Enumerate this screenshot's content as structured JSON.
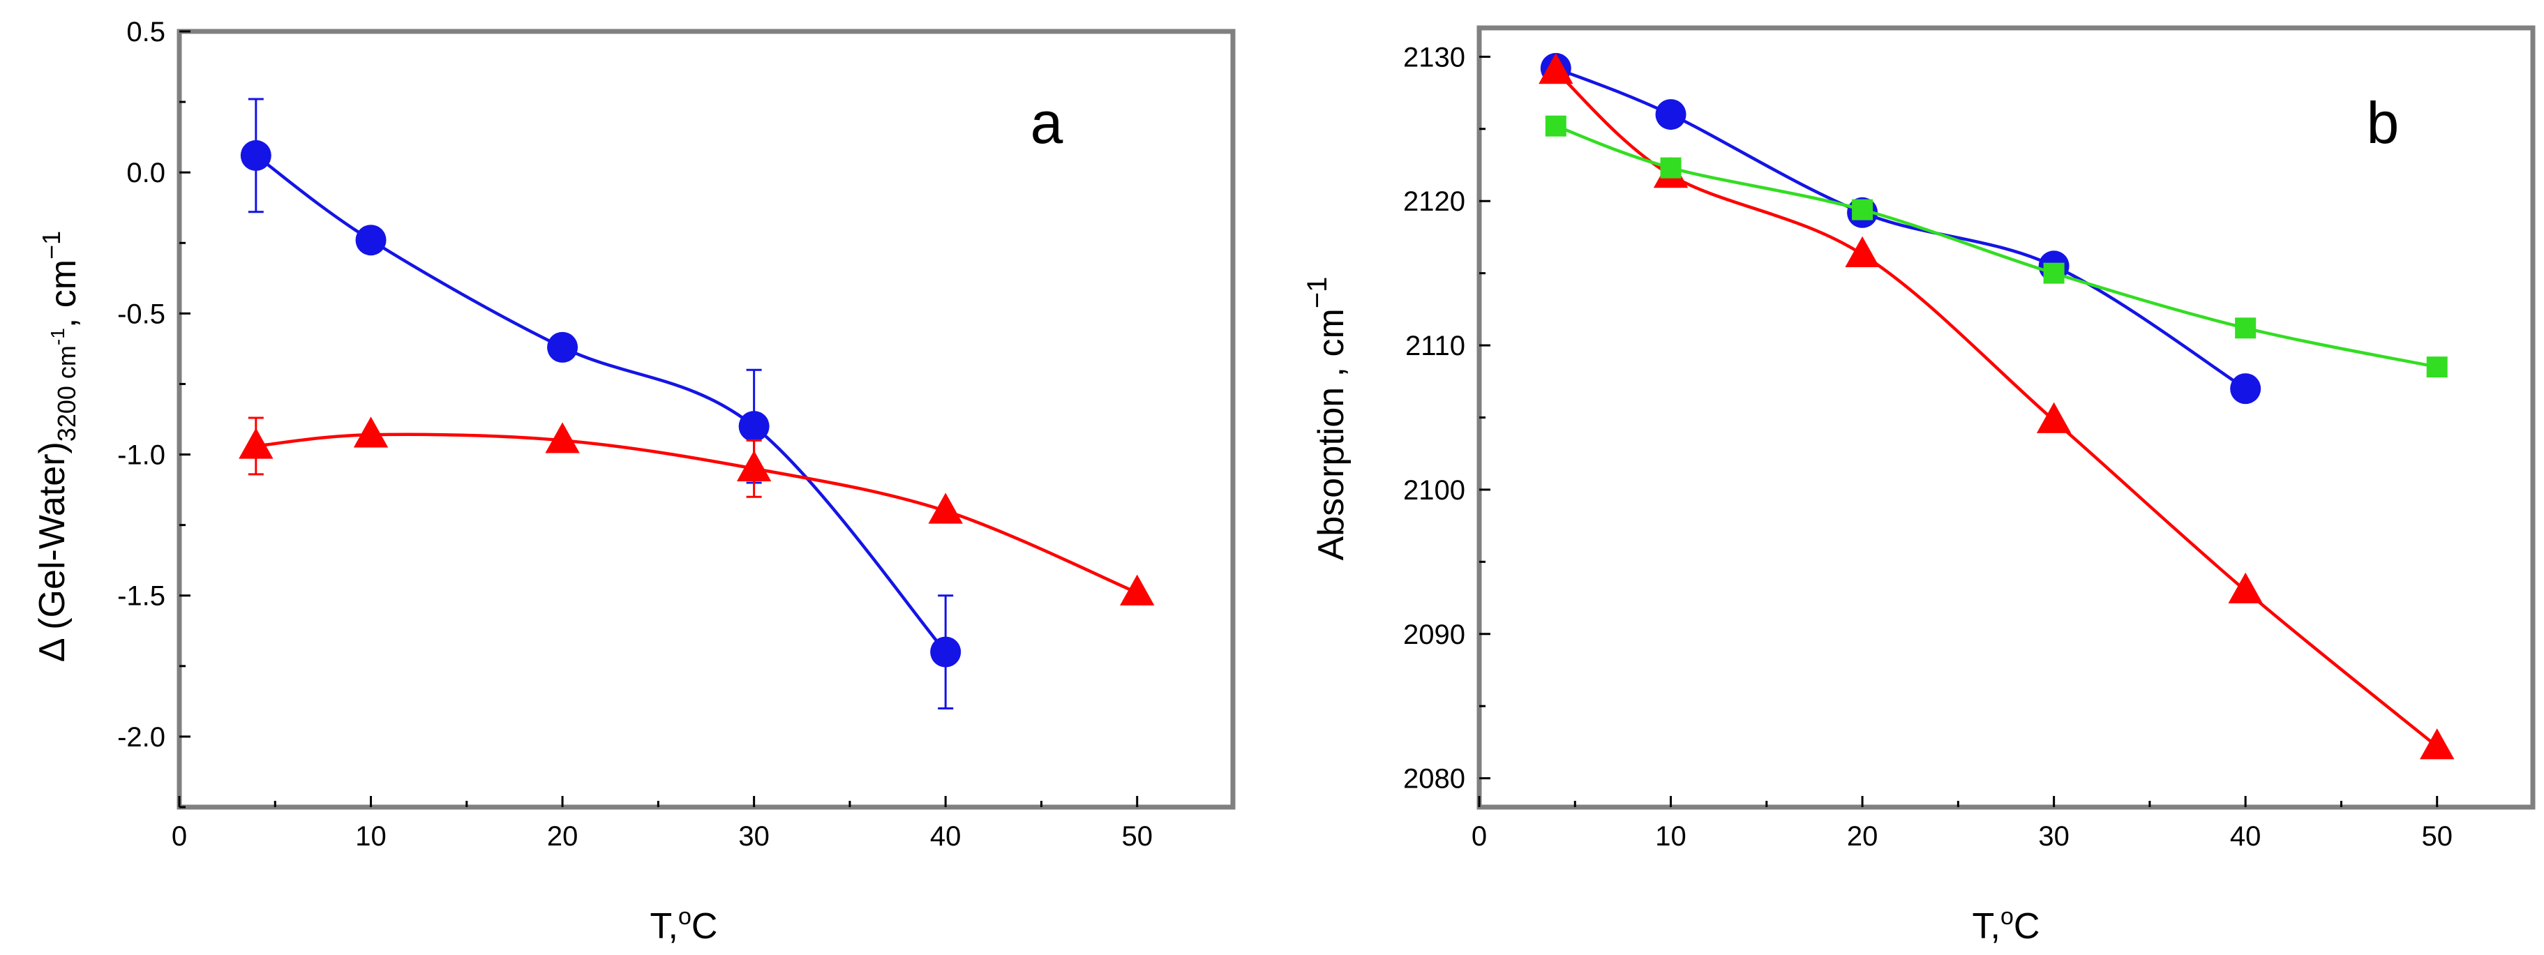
{
  "chart_data": [
    {
      "panel": "a",
      "type": "line",
      "xlabel_base": "T,",
      "xlabel_sup": "o",
      "xlabel_tail": "C",
      "ylabel_prefix": "Δ (Gel-Water)",
      "ylabel_sub": "3200 cm",
      "ylabel_sub_sup": "-1",
      "ylabel_unit": ", cm",
      "ylabel_unit_sup": "−1",
      "xlim": [
        0,
        55
      ],
      "ylim": [
        -2.25,
        0.5
      ],
      "xticks": [
        0,
        10,
        20,
        30,
        40,
        50
      ],
      "yticks": [
        0.5,
        0.0,
        -0.5,
        -1.0,
        -1.5,
        -2.0
      ],
      "ytick_labels": [
        "0.5",
        "0.0",
        "-0.5",
        "-1.0",
        "-1.5",
        "-2.0"
      ],
      "series": [
        {
          "name": "blue circles",
          "color": "#1414e6",
          "marker": "circle",
          "x": [
            4,
            10,
            20,
            30,
            40
          ],
          "y": [
            0.06,
            -0.24,
            -0.62,
            -0.9,
            -1.7
          ],
          "err": [
            0.2,
            0,
            0,
            0.2,
            0.2
          ]
        },
        {
          "name": "red triangles",
          "color": "#ff0000",
          "marker": "triangle",
          "x": [
            4,
            10,
            20,
            30,
            40,
            50
          ],
          "y": [
            -0.97,
            -0.93,
            -0.95,
            -1.05,
            -1.2,
            -1.49
          ],
          "err": [
            0.1,
            0,
            0,
            0.1,
            0,
            0
          ]
        }
      ]
    },
    {
      "panel": "b",
      "type": "line",
      "xlabel_base": "T,",
      "xlabel_sup": "o",
      "xlabel_tail": "C",
      "ylabel_prefix": "Absorption , cm",
      "ylabel_unit_sup": "−1",
      "xlim": [
        0,
        55
      ],
      "ylim": [
        2078,
        2132
      ],
      "xticks": [
        0,
        10,
        20,
        30,
        40,
        50
      ],
      "yticks": [
        2080,
        2090,
        2100,
        2110,
        2120,
        2130
      ],
      "ytick_labels": [
        "2080",
        "2090",
        "2100",
        "2110",
        "2120",
        "2130"
      ],
      "series": [
        {
          "name": "blue circles",
          "color": "#1414e6",
          "marker": "circle",
          "x": [
            4,
            10,
            20,
            30,
            40
          ],
          "y": [
            2129.2,
            2126.0,
            2119.2,
            2115.5,
            2107.0
          ]
        },
        {
          "name": "red triangles",
          "color": "#ff0000",
          "marker": "triangle",
          "x": [
            4,
            10,
            20,
            30,
            40,
            50
          ],
          "y": [
            2129.0,
            2121.8,
            2116.3,
            2104.8,
            2093.0,
            2082.2
          ]
        },
        {
          "name": "green squares",
          "color": "#33dd22",
          "marker": "square",
          "x": [
            4,
            10,
            20,
            30,
            40,
            50
          ],
          "y": [
            2125.2,
            2122.3,
            2119.4,
            2115.0,
            2111.2,
            2108.5
          ]
        }
      ]
    }
  ]
}
